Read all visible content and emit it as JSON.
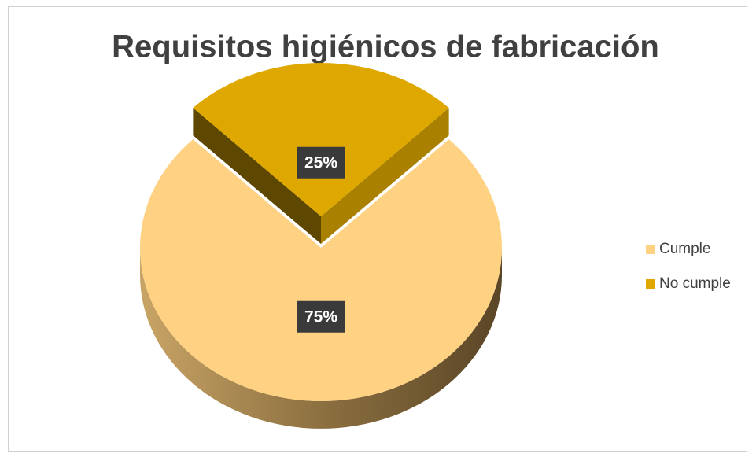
{
  "chart_data": {
    "type": "pie",
    "title": "Requisitos higiénicos de fabricación",
    "categories": [
      "Cumple",
      "No cumple"
    ],
    "values": [
      75,
      25
    ],
    "value_labels": [
      "75%",
      "25%"
    ],
    "colors": [
      "#FED183",
      "#DFA800"
    ],
    "legend": "right"
  }
}
